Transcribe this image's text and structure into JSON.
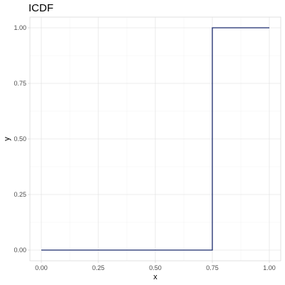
{
  "chart_data": {
    "type": "line",
    "title": "ICDF",
    "xlabel": "x",
    "ylabel": "y",
    "xlim": [
      0,
      1
    ],
    "ylim": [
      0,
      1
    ],
    "x_ticks": [
      0,
      0.25,
      0.5,
      0.75,
      1
    ],
    "x_tick_labels": [
      "0.00",
      "0.25",
      "0.50",
      "0.75",
      "1.00"
    ],
    "y_ticks": [
      0,
      0.25,
      0.5,
      0.75,
      1
    ],
    "y_tick_labels": [
      "0.00",
      "0.25",
      "0.50",
      "0.75",
      "1.00"
    ],
    "grid": true,
    "series": [
      {
        "step": true,
        "color": "#1a2a6c",
        "x": [
          0,
          0.75,
          0.75,
          1
        ],
        "y": [
          0,
          0,
          1,
          1
        ]
      }
    ]
  }
}
